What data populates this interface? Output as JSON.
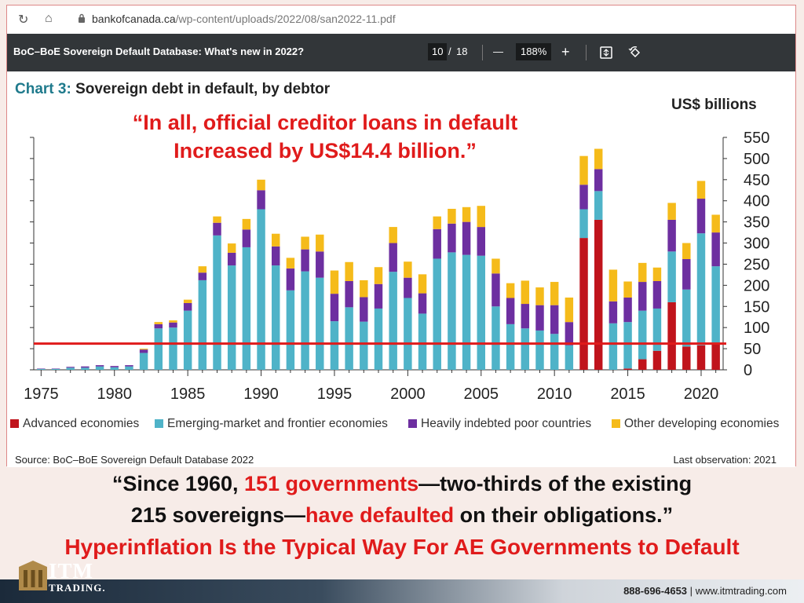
{
  "browser": {
    "url_domain": "bankofcanada.ca",
    "url_path": "/wp-content/uploads/2022/08/san2022-11.pdf"
  },
  "pdf_toolbar": {
    "title": "BoC–BoE Sovereign Default Database: What's new in 2022?",
    "page_current": "10",
    "page_sep": "/",
    "page_total": "18",
    "zoom_out": "—",
    "zoom": "188%",
    "zoom_in": "+"
  },
  "chart_header": {
    "number": "Chart 3:",
    "title": "Sovereign debt in default, by debtor",
    "units": "US$ billions"
  },
  "overlay_quote": {
    "line1": "“In all, official creditor loans in default",
    "line2": "Increased by US$14.4 billion.”"
  },
  "chart_data": {
    "type": "bar",
    "stacked": true,
    "title": "Sovereign debt in default, by debtor",
    "ylabel": "US$ billions",
    "ylim": [
      0,
      550
    ],
    "y_ticks": [
      0,
      50,
      100,
      150,
      200,
      250,
      300,
      350,
      400,
      450,
      500,
      550
    ],
    "x_ticks": [
      1975,
      1980,
      1985,
      1990,
      1995,
      2000,
      2005,
      2010,
      2015,
      2020
    ],
    "x": [
      1975,
      1976,
      1977,
      1978,
      1979,
      1980,
      1981,
      1982,
      1983,
      1984,
      1985,
      1986,
      1987,
      1988,
      1989,
      1990,
      1991,
      1992,
      1993,
      1994,
      1995,
      1996,
      1997,
      1998,
      1999,
      2000,
      2001,
      2002,
      2003,
      2004,
      2005,
      2006,
      2007,
      2008,
      2009,
      2010,
      2011,
      2012,
      2013,
      2014,
      2015,
      2016,
      2017,
      2018,
      2019,
      2020,
      2021
    ],
    "series": [
      {
        "name": "Advanced economies",
        "color": "#c0141c",
        "values": [
          0,
          0,
          0,
          0,
          0,
          0,
          0,
          0,
          0,
          0,
          0,
          0,
          0,
          0,
          0,
          0,
          0,
          0,
          0,
          0,
          0,
          0,
          0,
          0,
          0,
          0,
          0,
          0,
          0,
          0,
          0,
          0,
          0,
          0,
          0,
          0,
          0,
          312,
          355,
          0,
          3,
          25,
          45,
          160,
          55,
          58,
          60
        ]
      },
      {
        "name": "Emerging-market and frontier economies",
        "color": "#4fb3c8",
        "values": [
          2,
          2,
          5,
          5,
          8,
          6,
          8,
          40,
          98,
          100,
          140,
          212,
          318,
          247,
          290,
          380,
          247,
          188,
          233,
          218,
          115,
          148,
          114,
          145,
          232,
          170,
          133,
          263,
          278,
          272,
          270,
          150,
          108,
          98,
          93,
          85,
          58,
          68,
          68,
          110,
          110,
          115,
          100,
          120,
          135,
          265,
          185
        ]
      },
      {
        "name": "Heavily indebted poor countries",
        "color": "#6d2fa0",
        "values": [
          1,
          1,
          2,
          3,
          3,
          3,
          3,
          8,
          10,
          12,
          18,
          18,
          30,
          30,
          42,
          45,
          45,
          52,
          52,
          62,
          65,
          62,
          58,
          58,
          68,
          48,
          48,
          70,
          68,
          78,
          68,
          78,
          62,
          58,
          60,
          68,
          55,
          58,
          52,
          52,
          58,
          68,
          65,
          75,
          72,
          82,
          80
        ]
      },
      {
        "name": "Other developing economies",
        "color": "#f5bb1a",
        "values": [
          0,
          0,
          0,
          0,
          0,
          0,
          0,
          2,
          5,
          5,
          8,
          15,
          15,
          22,
          25,
          25,
          30,
          25,
          30,
          40,
          55,
          45,
          40,
          40,
          38,
          38,
          45,
          30,
          35,
          35,
          50,
          35,
          35,
          55,
          42,
          55,
          58,
          68,
          48,
          75,
          38,
          45,
          32,
          40,
          38,
          42,
          42
        ]
      }
    ],
    "reference_line": {
      "y": 62,
      "color": "#e01b1b"
    },
    "legend_position": "bottom",
    "grid": false,
    "source": "Source: BoC–BoE Sovereign Default Database 2022",
    "last_observation": "Last observation: 2021"
  },
  "bottom_quote": {
    "p1": "“Since 1960, ",
    "p2": "151 governments",
    "p3": "—two-thirds of the existing",
    "p4": "215 sovereigns—",
    "p5": "have defaulted",
    "p6": " on their obligations.”"
  },
  "headline": "Hyperinflation Is the Typical Way For AE Governments to Default",
  "footer": {
    "logo_main": "ITM",
    "logo_sub": "TRADING.",
    "phone": "888-696-4653",
    "divider": "|",
    "website": "www.itmtrading.com"
  }
}
